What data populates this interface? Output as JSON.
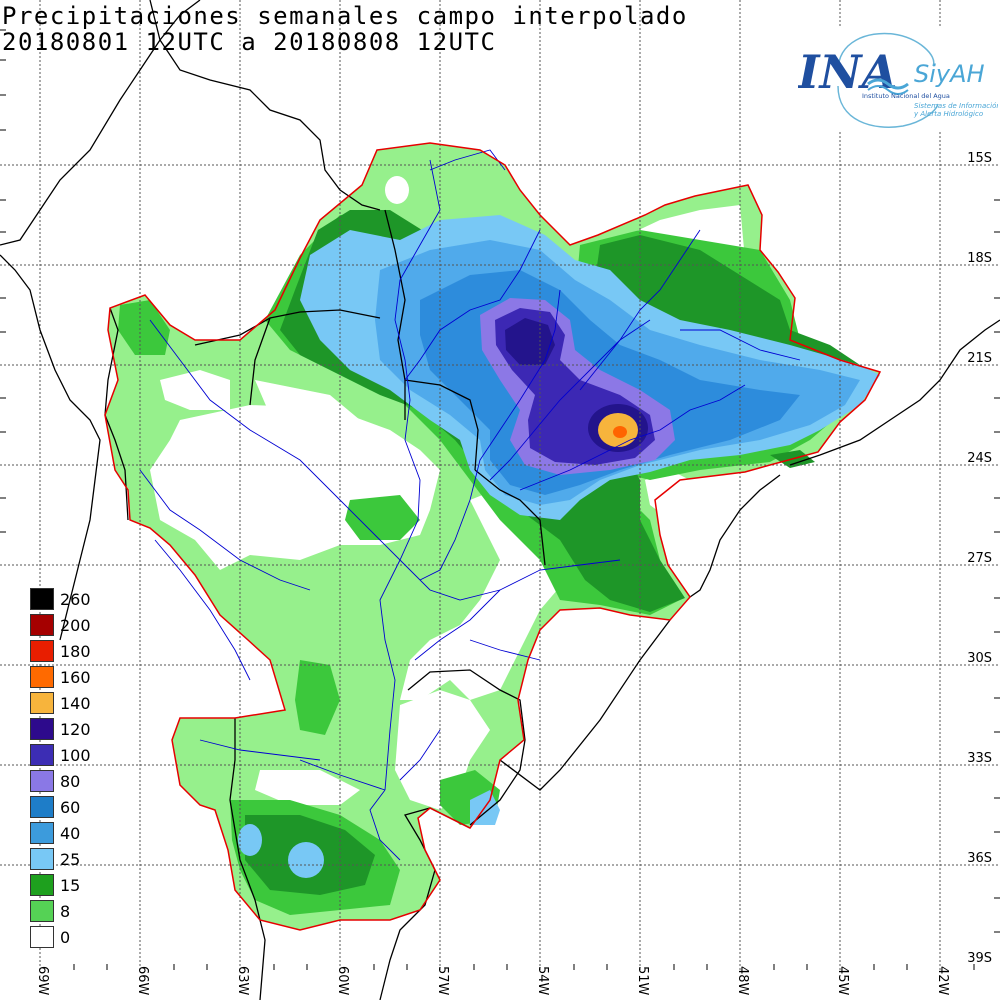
{
  "title": {
    "line1": "Precipitaciones semanales campo interpolado",
    "line2": "20180801 12UTC a 20180808 12UTC"
  },
  "logo": {
    "text_ina": "INA",
    "text_siyah": "SiyAH",
    "sub1": "Instituto Nacional del Agua",
    "sub2": "Sistemas de Información",
    "sub3": "y Alerta Hidrológico"
  },
  "lat_labels": [
    "15S",
    "18S",
    "21S",
    "24S",
    "27S",
    "30S",
    "33S",
    "36S",
    "39S"
  ],
  "lon_labels": [
    "69W",
    "66W",
    "63W",
    "60W",
    "57W",
    "54W",
    "51W",
    "48W",
    "45W",
    "42W"
  ],
  "legend": [
    {
      "label": "260",
      "color": "#000000"
    },
    {
      "label": "200",
      "color": "#a50000"
    },
    {
      "label": "180",
      "color": "#e81e00"
    },
    {
      "label": "160",
      "color": "#ff6a00"
    },
    {
      "label": "140",
      "color": "#f7b43c"
    },
    {
      "label": "120",
      "color": "#2d0a8c"
    },
    {
      "label": "100",
      "color": "#3c2db4"
    },
    {
      "label": "80",
      "color": "#8a78e6"
    },
    {
      "label": "60",
      "color": "#1e7dc8"
    },
    {
      "label": "40",
      "color": "#3c9bdc"
    },
    {
      "label": "25",
      "color": "#78c8f5"
    },
    {
      "label": "15",
      "color": "#1ea01e"
    },
    {
      "label": "8",
      "color": "#55d255"
    },
    {
      "label": "0",
      "color": "#ffffff"
    }
  ],
  "colors": {
    "c8": "#96f08c",
    "c15": "#3cc83c",
    "c25": "#1e9628",
    "c40": "#78c8f5",
    "c60": "#50aaeb",
    "c80": "#2d8cdc",
    "c100": "#8c78e6",
    "c120": "#3c28b4",
    "c140": "#23148c",
    "c160": "#f7b43c",
    "c180": "#ff6400",
    "basin_border": "#e60000",
    "rivers": "#0000d2",
    "borders": "#000000"
  }
}
